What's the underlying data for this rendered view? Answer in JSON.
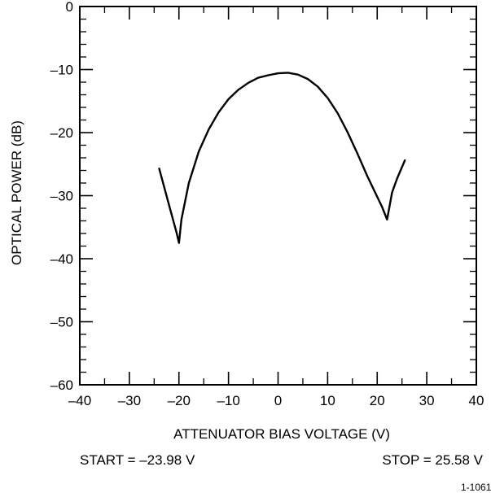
{
  "chart_data": {
    "type": "line",
    "xlabel": "ATTENUATOR BIAS VOLTAGE (V)",
    "ylabel": "OPTICAL POWER (dB)",
    "xlim": [
      -40,
      40
    ],
    "ylim": [
      -60,
      0
    ],
    "x_ticks": [
      -40,
      -30,
      -20,
      -10,
      0,
      10,
      20,
      30,
      40
    ],
    "x_tick_labels": [
      "–40",
      "–30",
      "–20",
      "–10",
      "0",
      "10",
      "20",
      "30",
      "40"
    ],
    "y_ticks": [
      0,
      -10,
      -20,
      -30,
      -40,
      -50,
      -60
    ],
    "y_tick_labels": [
      "0",
      "–10",
      "–20",
      "–30",
      "–40",
      "–50",
      "–60"
    ],
    "x_minor_step": 5,
    "y_minor_step": 2,
    "grid": false,
    "series": [
      {
        "x": [
          -23.98,
          -22.0,
          -20.5,
          -20.0,
          -19.5,
          -18.0,
          -16.0,
          -14.0,
          -12.0,
          -10.0,
          -8.0,
          -6.0,
          -4.0,
          -2.0,
          0.0,
          2.0,
          4.0,
          6.0,
          8.0,
          10.0,
          12.0,
          14.0,
          16.0,
          18.0,
          20.0,
          21.0,
          22.0,
          23.0,
          24.0,
          25.58
        ],
        "y": [
          -25.7,
          -31.5,
          -35.8,
          -37.5,
          -33.8,
          -28.0,
          -23.0,
          -19.5,
          -16.8,
          -14.7,
          -13.2,
          -12.1,
          -11.3,
          -10.9,
          -10.6,
          -10.5,
          -10.8,
          -11.5,
          -12.7,
          -14.5,
          -16.9,
          -19.9,
          -23.3,
          -26.9,
          -30.2,
          -31.8,
          -33.8,
          -29.5,
          -27.3,
          -24.4
        ]
      }
    ],
    "annotations": {
      "start": "START = –23.98 V",
      "stop": "STOP = 25.58 V",
      "figure_id": "1-1061("
    }
  }
}
